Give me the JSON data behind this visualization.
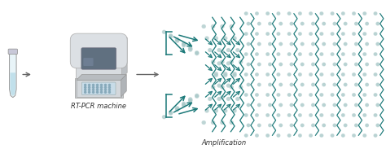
{
  "label_rtpcr": "RT-PCR machine",
  "label_amplification": "Amplification",
  "teal": "#1a7878",
  "dot_color": "#a8c8c8",
  "dot_small": "#b8d0d0",
  "arrow_color": "#666666",
  "machine_body": "#d0d4d8",
  "machine_dark": "#b0b4b8",
  "machine_shadow": "#9098a0",
  "screen_color": "#607080",
  "well_bg": "#c8dce8",
  "well_dot": "#88aabb",
  "tube_body": "#e8f4f8",
  "tube_liquid": "#b8dce8"
}
